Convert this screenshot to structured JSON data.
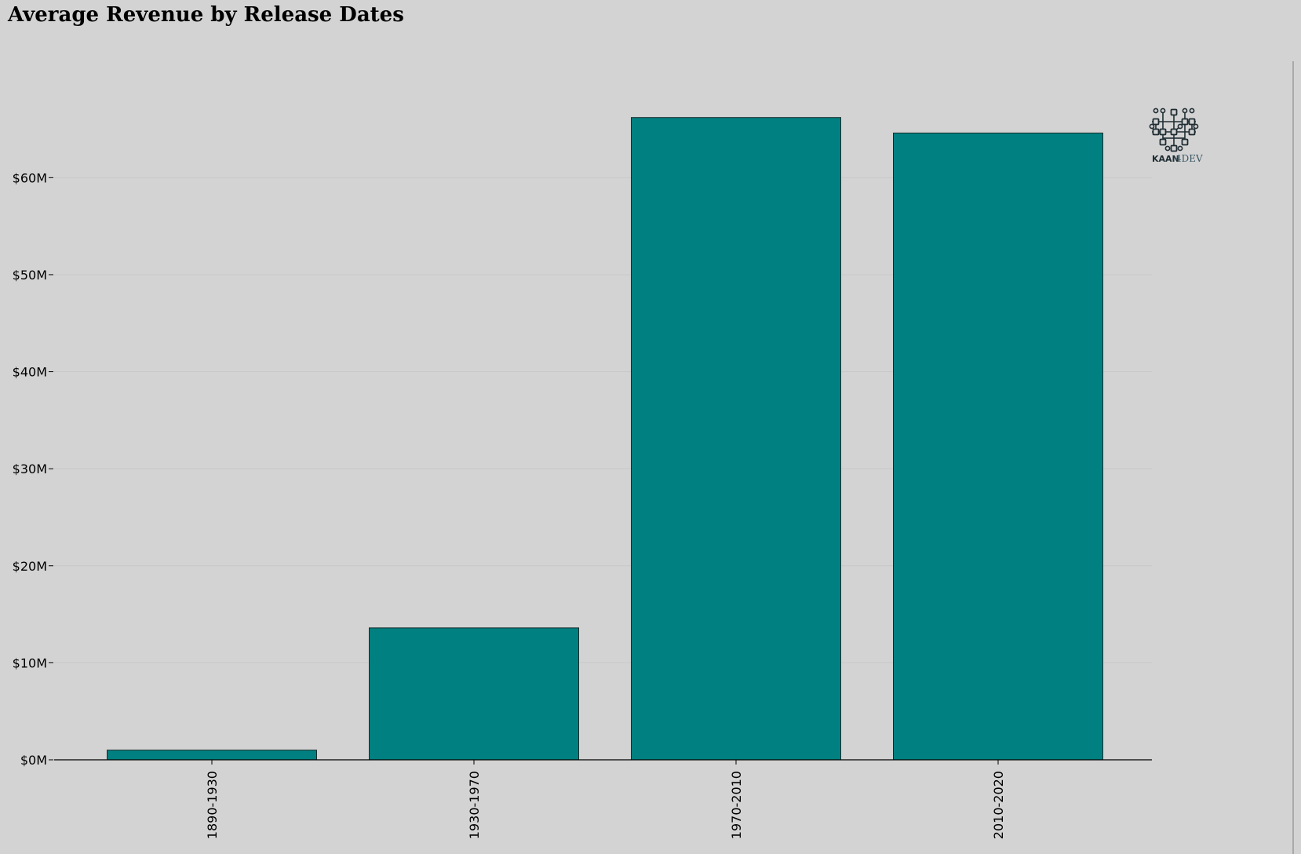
{
  "chart_data": {
    "type": "bar",
    "title": "Average Revenue by Release Dates",
    "xlabel": "",
    "ylabel": "",
    "categories": [
      "1890-1930",
      "1930-1970",
      "1970-2010",
      "2010-2020"
    ],
    "values": [
      1000000,
      13600000,
      66200000,
      64600000
    ],
    "ylim": [
      0,
      72000000
    ],
    "yticks": [
      0,
      10000000,
      20000000,
      30000000,
      40000000,
      50000000,
      60000000
    ],
    "ytick_labels": [
      "$0M",
      "$10M",
      "$20M",
      "$30M",
      "$40M",
      "$50M",
      "$60M"
    ],
    "x_tick_rotation": "vertical",
    "grid": "horizontal",
    "legend": "none"
  },
  "logo": {
    "name": "kaan4dev-logo-icon",
    "text_bold": "KAAN",
    "text_rest": "4DEV"
  },
  "colors": {
    "background": "#d3d3d3",
    "bar_fill": "#008080",
    "bar_edge": "#1a2a2a",
    "grid": "#c8c8c8",
    "axis": "#000000",
    "logo_dark": "#1f2d33",
    "logo_accent": "#3d5a66"
  }
}
